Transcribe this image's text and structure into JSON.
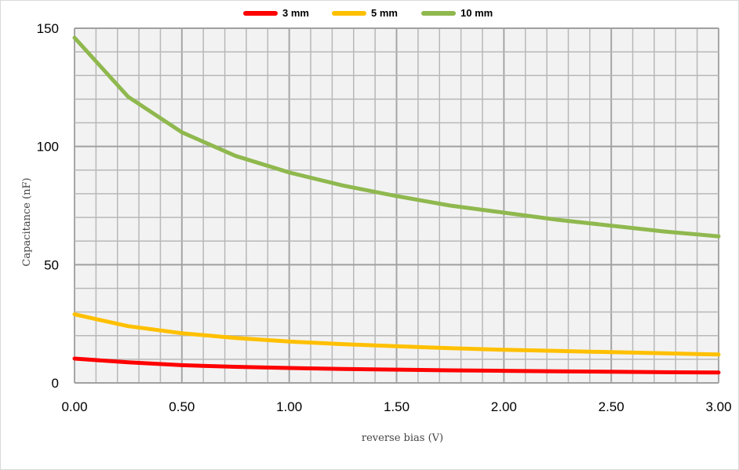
{
  "chart_data": {
    "type": "line",
    "title": "",
    "xlabel": "reverse bias (V)",
    "ylabel": "Capacitance (nF)",
    "xlim": [
      0,
      3
    ],
    "ylim": [
      0,
      150
    ],
    "x_ticks": [
      "0.00",
      "0.50",
      "1.00",
      "1.50",
      "2.00",
      "2.50",
      "3.00"
    ],
    "y_ticks": [
      "0",
      "50",
      "100",
      "150"
    ],
    "grid": true,
    "legend_position": "top-center",
    "x": [
      0,
      0.25,
      0.5,
      0.75,
      1.0,
      1.25,
      1.5,
      1.75,
      2.0,
      2.25,
      2.5,
      2.75,
      3.0
    ],
    "series": [
      {
        "name": "3 mm",
        "color": "#ff0000",
        "values": [
          10.3,
          8.7,
          7.5,
          6.8,
          6.3,
          5.9,
          5.6,
          5.3,
          5.1,
          4.9,
          4.7,
          4.5,
          4.4
        ]
      },
      {
        "name": "5 mm",
        "color": "#ffc000",
        "values": [
          29,
          24,
          21,
          19,
          17.5,
          16.4,
          15.5,
          14.7,
          14,
          13.5,
          13,
          12.5,
          12
        ]
      },
      {
        "name": "10 mm",
        "color": "#8fb84e",
        "values": [
          146,
          121,
          106,
          96,
          89,
          83.5,
          79,
          75,
          72,
          69,
          66.5,
          64,
          62
        ]
      }
    ]
  }
}
